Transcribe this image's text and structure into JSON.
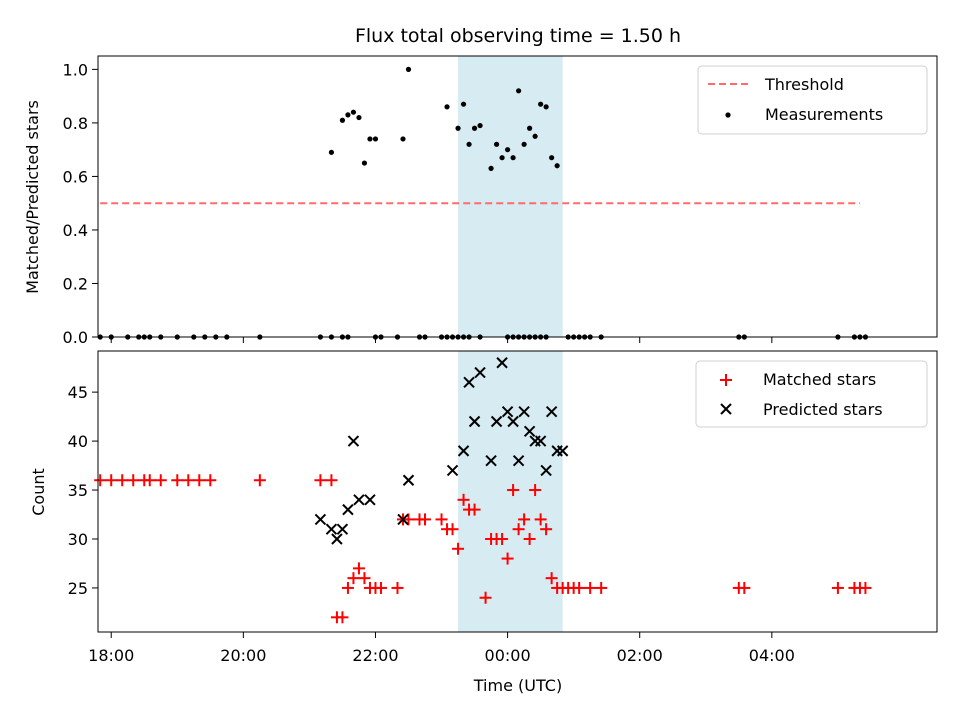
{
  "chart_data": [
    {
      "type": "scatter",
      "title": "Flux total observing time = 1.50 h",
      "xlabel": "",
      "ylabel": "Matched/Predicted stars",
      "ylim": [
        0,
        1.05
      ],
      "yticks": [
        "0.0",
        "0.2",
        "0.4",
        "0.6",
        "0.8",
        "1.0"
      ],
      "legend_position": "top-right",
      "highlight_band": {
        "x": [
          "23:15",
          "00:50"
        ],
        "color": "#add8e6"
      },
      "threshold": {
        "name": "Threshold",
        "value": 0.5,
        "x": [
          "17:50",
          "05:20"
        ],
        "color": "#ff6b6b"
      },
      "series": [
        {
          "name": "Measurements",
          "color": "#000000",
          "x": [
            "17:50",
            "18:00",
            "18:15",
            "18:25",
            "18:30",
            "18:35",
            "18:45",
            "19:00",
            "19:15",
            "19:25",
            "19:35",
            "19:45",
            "20:15",
            "21:10",
            "21:20",
            "21:30",
            "21:35",
            "22:00",
            "22:05",
            "22:20",
            "22:40",
            "22:45",
            "23:00",
            "23:05",
            "23:10",
            "23:15",
            "23:20",
            "23:25",
            "23:35",
            "00:00",
            "00:05",
            "00:10",
            "00:15",
            "00:20",
            "00:25",
            "00:30",
            "00:35",
            "00:55",
            "01:00",
            "01:05",
            "01:10",
            "01:15",
            "01:25",
            "21:20",
            "21:30",
            "21:35",
            "21:40",
            "21:45",
            "21:50",
            "21:55",
            "22:00",
            "22:25",
            "22:30",
            "23:05",
            "23:15",
            "23:20",
            "23:25",
            "23:30",
            "23:35",
            "23:45",
            "23:50",
            "23:55",
            "00:00",
            "00:05",
            "00:10",
            "00:15",
            "00:20",
            "00:25",
            "00:30",
            "00:35",
            "00:40",
            "00:45",
            "03:30",
            "03:35",
            "05:00",
            "05:15",
            "05:20",
            "05:25"
          ],
          "y": [
            0,
            0,
            0,
            0,
            0,
            0,
            0,
            0,
            0,
            0,
            0,
            0,
            0,
            0,
            0,
            0,
            0,
            0,
            0,
            0,
            0,
            0,
            0,
            0,
            0,
            0,
            0,
            0,
            0,
            0,
            0,
            0,
            0,
            0,
            0,
            0,
            0,
            0,
            0,
            0,
            0,
            0,
            0,
            0.69,
            0.81,
            0.83,
            0.84,
            0.82,
            0.65,
            0.74,
            0.74,
            0.74,
            1.0,
            0.86,
            0.78,
            0.87,
            0.72,
            0.78,
            0.79,
            0.63,
            0.72,
            0.67,
            0.7,
            0.67,
            0.92,
            0.72,
            0.78,
            0.75,
            0.87,
            0.86,
            0.67,
            0.64,
            0,
            0,
            0,
            0,
            0,
            0
          ]
        }
      ]
    },
    {
      "type": "scatter",
      "title": "",
      "xlabel": "Time (UTC)",
      "ylabel": "Count",
      "ylim": [
        20.5,
        49.2
      ],
      "yticks": [
        "25",
        "30",
        "35",
        "40",
        "45"
      ],
      "xticks": [
        "18:00",
        "20:00",
        "22:00",
        "00:00",
        "02:00",
        "04:00"
      ],
      "legend_position": "top-right",
      "highlight_band": {
        "x": [
          "23:15",
          "00:50"
        ],
        "color": "#add8e6"
      },
      "series": [
        {
          "name": "Matched stars",
          "color": "#ff0000",
          "x": [
            "17:50",
            "18:00",
            "18:10",
            "18:20",
            "18:30",
            "18:35",
            "18:45",
            "19:00",
            "19:10",
            "19:20",
            "19:30",
            "20:15",
            "21:10",
            "21:20",
            "21:25",
            "21:30",
            "21:35",
            "21:40",
            "21:45",
            "21:50",
            "21:55",
            "22:00",
            "22:05",
            "22:20",
            "22:25",
            "22:30",
            "22:40",
            "22:45",
            "23:00",
            "23:05",
            "23:10",
            "23:15",
            "23:20",
            "23:25",
            "23:30",
            "23:40",
            "23:45",
            "23:50",
            "23:55",
            "00:00",
            "00:05",
            "00:10",
            "00:15",
            "00:20",
            "00:25",
            "00:30",
            "00:35",
            "00:40",
            "00:45",
            "00:50",
            "00:55",
            "01:00",
            "01:05",
            "01:15",
            "01:25",
            "03:30",
            "03:35",
            "05:00",
            "05:15",
            "05:20",
            "05:25"
          ],
          "y": [
            36,
            36,
            36,
            36,
            36,
            36,
            36,
            36,
            36,
            36,
            36,
            36,
            36,
            36,
            22,
            22,
            25,
            26,
            27,
            26,
            25,
            25,
            25,
            25,
            32,
            32,
            32,
            32,
            32,
            31,
            31,
            29,
            34,
            33,
            33,
            24,
            30,
            30,
            30,
            28,
            35,
            31,
            32,
            30,
            35,
            32,
            31,
            26,
            25,
            25,
            25,
            25,
            25,
            25,
            25,
            25,
            25,
            25,
            25,
            25,
            25
          ]
        },
        {
          "name": "Predicted stars",
          "color": "#000000",
          "x": [
            "21:10",
            "21:20",
            "21:25",
            "21:30",
            "21:35",
            "21:40",
            "21:45",
            "21:55",
            "22:25",
            "22:30",
            "23:10",
            "23:20",
            "23:25",
            "23:30",
            "23:35",
            "23:45",
            "23:50",
            "23:55",
            "00:00",
            "00:05",
            "00:10",
            "00:15",
            "00:20",
            "00:25",
            "00:30",
            "00:35",
            "00:40",
            "00:45",
            "00:50"
          ],
          "y": [
            32,
            31,
            30,
            31,
            33,
            40,
            34,
            34,
            32,
            36,
            37,
            39,
            46,
            42,
            47,
            38,
            42,
            48,
            43,
            42,
            38,
            43,
            41,
            40,
            40,
            37,
            43,
            39,
            39
          ]
        }
      ]
    }
  ]
}
